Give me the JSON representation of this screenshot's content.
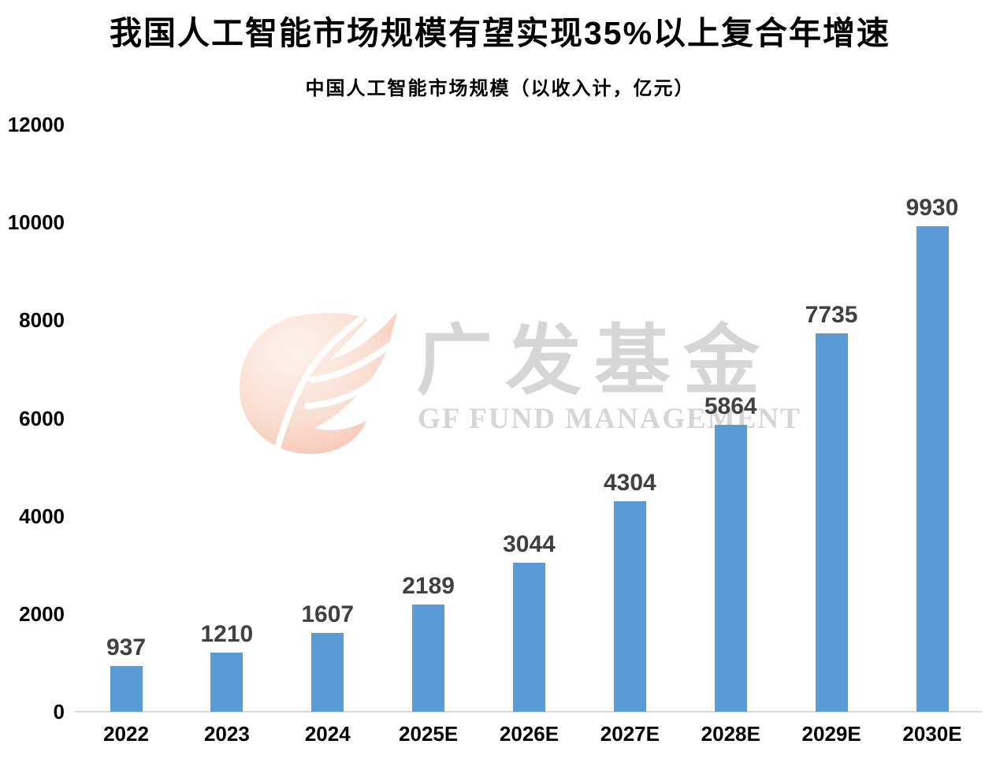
{
  "page": {
    "title": "我国人工智能市场规模有望实现35%以上复合年增速",
    "subtitle": "中国人工智能市场规模（以收入计，亿元）"
  },
  "watermark": {
    "logo_icon": "gf-flame-logo",
    "cn_text": "广发基金",
    "en_text": "GF FUND MANAGEMENT",
    "text_color": "#d6d6d6"
  },
  "chart_data": {
    "type": "bar",
    "title": "中国人工智能市场规模（以收入计，亿元）",
    "categories": [
      "2022",
      "2023",
      "2024",
      "2025E",
      "2026E",
      "2027E",
      "2028E",
      "2029E",
      "2030E"
    ],
    "values": [
      937,
      1210,
      1607,
      2189,
      3044,
      4304,
      5864,
      7735,
      9930
    ],
    "ylim": [
      0,
      12000
    ],
    "yticks": [
      0,
      2000,
      4000,
      6000,
      8000,
      10000,
      12000
    ],
    "xlabel": "",
    "ylabel": "",
    "grid": false,
    "legend_position": "none",
    "bar_color": "#5B9BD5",
    "value_label_color": "#404040",
    "axis_label_color": "#000000",
    "axis_line_color": "#d9d9d9"
  }
}
